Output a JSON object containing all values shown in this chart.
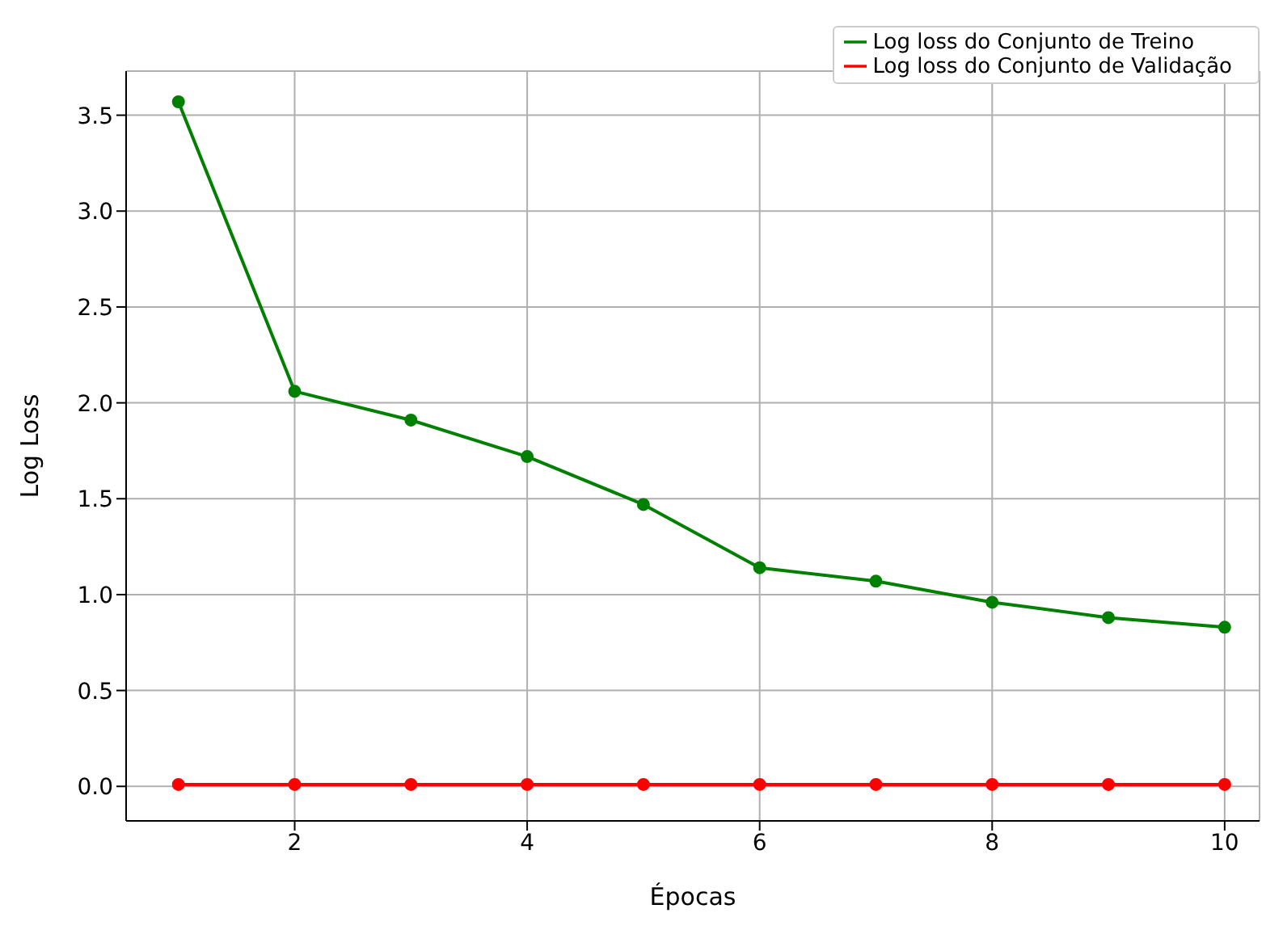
{
  "chart_data": {
    "type": "line",
    "xlabel": "Épocas",
    "ylabel": "Log Loss",
    "x": [
      1,
      2,
      3,
      4,
      5,
      6,
      7,
      8,
      9,
      10
    ],
    "series": [
      {
        "name": "Log loss do Conjunto de Treino",
        "color": "#008000",
        "values": [
          3.57,
          2.06,
          1.91,
          1.72,
          1.47,
          1.14,
          1.07,
          0.96,
          0.88,
          0.83
        ]
      },
      {
        "name": "Log loss do Conjunto de Validação",
        "color": "#ff0000",
        "values": [
          0.01,
          0.01,
          0.01,
          0.01,
          0.01,
          0.01,
          0.01,
          0.01,
          0.01,
          0.01
        ]
      }
    ],
    "xlim": [
      0.55,
      10.3
    ],
    "xticks": [
      2,
      4,
      6,
      8,
      10
    ],
    "ylim": [
      -0.18,
      3.73
    ],
    "yticks": [
      {
        "value": 0,
        "label": "0.0"
      },
      0.5,
      {
        "value": 1,
        "label": "1.0"
      },
      1.5,
      {
        "value": 2,
        "label": "2.0"
      },
      2.5,
      {
        "value": 3,
        "label": "3.0"
      },
      3.5
    ],
    "grid": true,
    "legend": "top right",
    "marker": "circle",
    "line_style": "solid"
  }
}
